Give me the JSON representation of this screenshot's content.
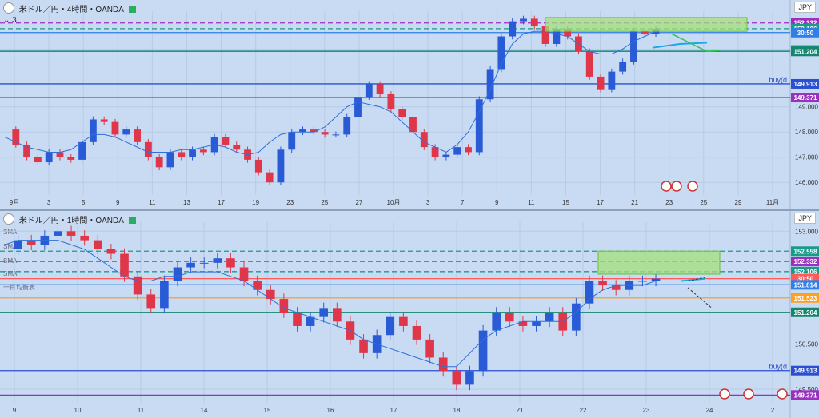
{
  "panels": [
    {
      "id": "p1",
      "title": "米ドル／円・4時間・OANDA",
      "legend_extra": "3",
      "currency": "JPY",
      "chart_data": {
        "type": "candlestick",
        "title": "米ドル／円・4時間・OANDA",
        "ylim": [
          145.5,
          152.8
        ],
        "x_ticks": [
          "9月",
          "3",
          "5",
          "9",
          "11",
          "13",
          "17",
          "19",
          "23",
          "25",
          "27",
          "10月",
          "3",
          "7",
          "9",
          "11",
          "15",
          "17",
          "21",
          "23",
          "25",
          "29",
          "11月"
        ],
        "y_ticks": [
          "146.000",
          "147.000",
          "148.000",
          "149.000"
        ],
        "levels": [
          {
            "label": "152.332",
            "value": 152.332,
            "color": "#9b2fbf",
            "dash": true
          },
          {
            "label": "152.106",
            "value": 152.106,
            "color": "#1a9a8a",
            "dash": true
          },
          {
            "label": "30:50",
            "value": 151.95,
            "color": "#2f7fe6",
            "dash": false
          },
          {
            "label": "151.258",
            "value": 151.258,
            "color": "#1a9a8a",
            "dash": false
          },
          {
            "label": "151.204",
            "value": 151.204,
            "color": "#14866e",
            "dash": false
          },
          {
            "label": "149.913",
            "value": 149.913,
            "color": "#2a4fd0",
            "dash": false,
            "name": "buy(d"
          },
          {
            "label": "149.371",
            "value": 149.371,
            "color": "#9b2fbf",
            "dash": false
          }
        ],
        "path_close": [
          148.1,
          147.5,
          147.0,
          146.8,
          147.2,
          147.0,
          146.9,
          147.6,
          148.5,
          148.4,
          147.9,
          148.1,
          147.6,
          147.0,
          146.6,
          147.2,
          147.0,
          147.3,
          147.2,
          147.8,
          147.5,
          147.3,
          146.9,
          146.4,
          146.0,
          147.3,
          148.0,
          148.1,
          148.0,
          147.9,
          147.9,
          148.6,
          149.4,
          149.9,
          149.5,
          148.9,
          148.6,
          148.0,
          147.4,
          147.0,
          147.1,
          147.4,
          147.2,
          149.3,
          150.5,
          151.8,
          152.4,
          152.5,
          152.2,
          151.5,
          152.1,
          151.8,
          151.2,
          150.2,
          149.7,
          150.4,
          150.8,
          152.0,
          151.9,
          152.1
        ],
        "sma": [
          147.8,
          147.6,
          147.4,
          147.3,
          147.2,
          147.2,
          147.3,
          147.6,
          147.9,
          147.9,
          147.8,
          147.6,
          147.4,
          147.2,
          147.2,
          147.2,
          147.3,
          147.3,
          147.4,
          147.5,
          147.4,
          147.2,
          147.1,
          147.2,
          147.6,
          147.9,
          148.0,
          148.0,
          148.0,
          148.2,
          148.6,
          149.0,
          149.2,
          149.1,
          149.0,
          148.8,
          148.4,
          148.0,
          147.6,
          147.4,
          147.2,
          147.5,
          148.0,
          148.8,
          149.7,
          150.7,
          151.5,
          151.9,
          152.0,
          152.0,
          151.9,
          151.8,
          151.5,
          151.2,
          151.1,
          151.1,
          151.3,
          151.6,
          151.8,
          152.0
        ]
      }
    },
    {
      "id": "p2",
      "title": "米ドル／円・1時間・OANDA",
      "currency": "JPY",
      "sma_labels": [
        "SMA",
        "SMA",
        "SMA",
        "SMA",
        "一目均衡表"
      ],
      "chart_data": {
        "type": "candlestick",
        "title": "米ドル／円・1時間・OANDA",
        "ylim": [
          149.2,
          153.2
        ],
        "x_ticks": [
          "9",
          "10",
          "11",
          "14",
          "15",
          "16",
          "17",
          "18",
          "21",
          "22",
          "23",
          "24",
          "2"
        ],
        "y_ticks": [
          "153.000",
          "150.500",
          "149.500"
        ],
        "levels": [
          {
            "label": "152.558",
            "value": 152.558,
            "color": "#1a9a8a",
            "dash": true
          },
          {
            "label": "152.332",
            "value": 152.332,
            "color": "#9b2fbf",
            "dash": true
          },
          {
            "label": "152.106",
            "value": 152.106,
            "color": "#1a9a8a",
            "dash": true
          },
          {
            "label": "30:50",
            "value": 151.95,
            "color": "#ff5a5a",
            "dash": false
          },
          {
            "label": "151.814",
            "value": 151.814,
            "color": "#2f7fe6",
            "dash": false
          },
          {
            "label": "151.523",
            "value": 151.523,
            "color": "#ff9f1a",
            "dash": false
          },
          {
            "label": "151.204",
            "value": 151.204,
            "color": "#14866e",
            "dash": false
          },
          {
            "label": "149.913",
            "value": 149.913,
            "color": "#2a4fd0",
            "dash": false,
            "name": "buy(d"
          },
          {
            "label": "149.371",
            "value": 149.371,
            "color": "#9b2fbf",
            "dash": false
          }
        ],
        "path_close": [
          152.6,
          152.8,
          152.7,
          152.9,
          153.0,
          152.9,
          152.8,
          152.6,
          152.5,
          152.0,
          151.6,
          151.3,
          151.9,
          152.2,
          152.3,
          152.3,
          152.4,
          152.2,
          151.9,
          151.7,
          151.5,
          151.2,
          150.9,
          151.1,
          151.3,
          151.0,
          150.6,
          150.3,
          150.7,
          151.1,
          150.9,
          150.6,
          150.2,
          149.9,
          149.6,
          149.9,
          150.8,
          151.2,
          151.0,
          150.9,
          151.0,
          151.2,
          150.8,
          151.4,
          151.9,
          151.8,
          151.7,
          151.9,
          151.9,
          151.95
        ],
        "sma": [
          152.7,
          152.8,
          152.8,
          152.8,
          152.8,
          152.7,
          152.6,
          152.4,
          152.2,
          152.0,
          151.9,
          151.9,
          152.0,
          152.0,
          152.1,
          152.1,
          152.1,
          152.0,
          151.9,
          151.7,
          151.5,
          151.3,
          151.2,
          151.1,
          151.0,
          150.9,
          150.8,
          150.6,
          150.5,
          150.4,
          150.3,
          150.2,
          150.1,
          150.0,
          150.0,
          150.3,
          150.6,
          150.8,
          150.9,
          151.0,
          151.0,
          151.0,
          151.0,
          151.2,
          151.5,
          151.7,
          151.8,
          151.8,
          151.8,
          151.9
        ]
      }
    }
  ],
  "events": [
    "event-flag-1",
    "event-flag-2",
    "event-flag-3"
  ]
}
